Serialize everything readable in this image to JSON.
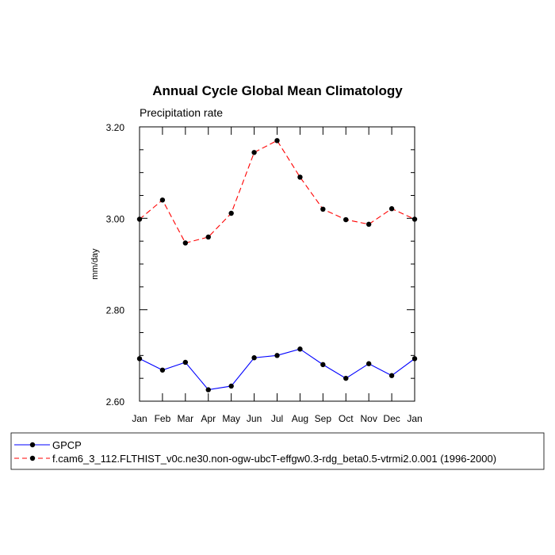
{
  "chart_data": {
    "type": "line",
    "title": "Annual Cycle Global Mean Climatology",
    "subtitle": "Precipitation rate",
    "ylabel": "mm/day",
    "xlabel": "",
    "ylim": [
      2.6,
      3.2
    ],
    "yticks": [
      2.6,
      2.8,
      3.0,
      3.2
    ],
    "ytick_labels": [
      "2.60",
      "2.80",
      "3.00",
      "3.20"
    ],
    "categories": [
      "Jan",
      "Feb",
      "Mar",
      "Apr",
      "May",
      "Jun",
      "Jul",
      "Aug",
      "Sep",
      "Oct",
      "Nov",
      "Dec",
      "Jan"
    ],
    "grid": false,
    "legend_position": "bottom",
    "series": [
      {
        "name": "GPCP",
        "color": "#0000ff",
        "dash": "solid",
        "values": [
          2.693,
          2.668,
          2.685,
          2.625,
          2.633,
          2.695,
          2.7,
          2.714,
          2.68,
          2.65,
          2.682,
          2.656,
          2.693
        ]
      },
      {
        "name": "f.cam6_3_112.FLTHIST_v0c.ne30.non-ogw-ubcT-effgw0.3-rdg_beta0.5-vtrmi2.0.001 (1996-2000)",
        "color": "#ff0000",
        "dash": "dashed",
        "values": [
          2.998,
          3.04,
          2.946,
          2.959,
          3.011,
          3.144,
          3.17,
          3.09,
          3.02,
          2.997,
          2.987,
          3.021,
          2.998
        ]
      }
    ]
  }
}
